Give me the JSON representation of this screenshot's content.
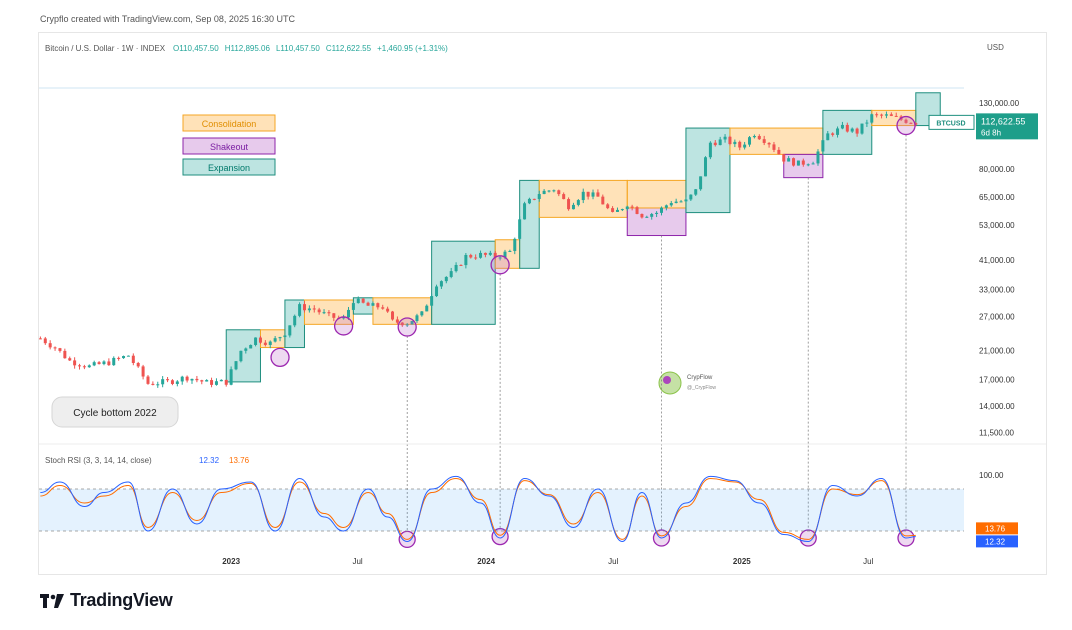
{
  "caption": "Crypflo created with TradingView.com, Sep 08, 2025 16:30 UTC",
  "header": {
    "symbol": "Bitcoin / U.S. Dollar · 1W · INDEX",
    "open": "O110,457.50",
    "high": "H112,895.06",
    "low": "L110,457.50",
    "close": "C112,622.55",
    "change": "+1,460.95 (+1.31%)"
  },
  "currency": "USD",
  "price_tag": {
    "ticker": "BTCUSD",
    "price": "112,622.55",
    "countdown": "6d 8h"
  },
  "legend": {
    "consolidation": "Consolidation",
    "shakeout": "Shakeout",
    "expansion": "Expansion"
  },
  "callout": "Cycle bottom 2022",
  "watermark": {
    "name": "CrypFlow",
    "handle": "@_CrypFlow"
  },
  "rsi": {
    "label": "Stoch RSI (3, 3, 14, 14, close)",
    "k_value": "12.32",
    "d_value": "13.76",
    "level_100": "100.00",
    "k_tag": "12.32",
    "d_tag": "13.76"
  },
  "brand": "TradingView",
  "colors": {
    "up": "#26a69a",
    "down": "#ef5350",
    "consolidation": "#f5a623",
    "shakeout": "#9c27b0",
    "expansion": "#26a69a",
    "k_line": "#2962ff",
    "d_line": "#ff6d00"
  },
  "chart_data": {
    "type": "candlestick",
    "y_scale": "log",
    "y_ticks": [
      "130,000.00",
      "80,000.00",
      "65,000.00",
      "53,000.00",
      "41,000.00",
      "33,000.00",
      "27,000.00",
      "21,000.00",
      "17,000.00",
      "14,000.00",
      "11,500.00"
    ],
    "y_tick_values": [
      130000,
      80000,
      65000,
      53000,
      41000,
      33000,
      27000,
      21000,
      17000,
      14000,
      11500
    ],
    "ylim": [
      10500,
      145000
    ],
    "x_ticks": [
      "2023",
      "Jul",
      "2024",
      "Jul",
      "2025",
      "Jul"
    ],
    "x_tick_dates": [
      "2023-01-01",
      "2023-07-01",
      "2024-01-01",
      "2024-07-01",
      "2025-01-01",
      "2025-07-01"
    ],
    "xlim": [
      "2022-04-01",
      "2025-11-15"
    ],
    "price_path": [
      [
        "2022-04-03",
        23000
      ],
      [
        "2022-04-24",
        21500
      ],
      [
        "2022-05-15",
        19500
      ],
      [
        "2022-06-12",
        18700
      ],
      [
        "2022-07-10",
        19300
      ],
      [
        "2022-08-07",
        20300
      ],
      [
        "2022-09-04",
        16500
      ],
      [
        "2022-10-02",
        16700
      ],
      [
        "2022-10-30",
        17300
      ],
      [
        "2022-11-27",
        16600
      ],
      [
        "2022-12-25",
        16700
      ],
      [
        "2023-01-15",
        21000
      ],
      [
        "2023-02-05",
        23000
      ],
      [
        "2023-02-26",
        22200
      ],
      [
        "2023-03-19",
        24000
      ],
      [
        "2023-04-09",
        29000
      ],
      [
        "2023-04-30",
        28500
      ],
      [
        "2023-05-21",
        27000
      ],
      [
        "2023-06-11",
        26500
      ],
      [
        "2023-06-25",
        30500
      ],
      [
        "2023-07-16",
        29200
      ],
      [
        "2023-08-06",
        29000
      ],
      [
        "2023-08-20",
        26000
      ],
      [
        "2023-09-10",
        25800
      ],
      [
        "2023-10-01",
        27500
      ],
      [
        "2023-10-22",
        34500
      ],
      [
        "2023-11-12",
        37000
      ],
      [
        "2023-12-03",
        42000
      ],
      [
        "2023-12-24",
        42500
      ],
      [
        "2024-01-14",
        42000
      ],
      [
        "2024-02-04",
        43500
      ],
      [
        "2024-02-25",
        61000
      ],
      [
        "2024-03-17",
        67000
      ],
      [
        "2024-04-07",
        69000
      ],
      [
        "2024-04-28",
        61000
      ],
      [
        "2024-05-19",
        67000
      ],
      [
        "2024-06-09",
        65000
      ],
      [
        "2024-06-30",
        57000
      ],
      [
        "2024-07-21",
        62000
      ],
      [
        "2024-08-11",
        57000
      ],
      [
        "2024-09-01",
        58000
      ],
      [
        "2024-09-22",
        63000
      ],
      [
        "2024-10-13",
        63000
      ],
      [
        "2024-10-27",
        68000
      ],
      [
        "2024-11-17",
        97000
      ],
      [
        "2024-12-08",
        99000
      ],
      [
        "2024-12-29",
        94000
      ],
      [
        "2025-01-19",
        104000
      ],
      [
        "2025-02-09",
        97000
      ],
      [
        "2025-03-02",
        86000
      ],
      [
        "2025-03-23",
        83000
      ],
      [
        "2025-04-13",
        85000
      ],
      [
        "2025-05-04",
        103000
      ],
      [
        "2025-05-25",
        108000
      ],
      [
        "2025-06-15",
        105000
      ],
      [
        "2025-07-06",
        118000
      ],
      [
        "2025-07-27",
        118000
      ],
      [
        "2025-08-17",
        115000
      ],
      [
        "2025-09-07",
        112622
      ]
    ],
    "zones": [
      {
        "type": "expansion",
        "start": "2022-12-25",
        "end": "2023-02-12",
        "low": 16700,
        "high": 24500
      },
      {
        "type": "consolidation",
        "start": "2023-02-12",
        "end": "2023-03-19",
        "low": 21500,
        "high": 24500
      },
      {
        "type": "expansion",
        "start": "2023-03-19",
        "end": "2023-04-16",
        "low": 21500,
        "high": 30500
      },
      {
        "type": "consolidation",
        "start": "2023-04-16",
        "end": "2023-06-25",
        "low": 25500,
        "high": 30500
      },
      {
        "type": "expansion",
        "start": "2023-06-25",
        "end": "2023-07-23",
        "low": 27500,
        "high": 31000
      },
      {
        "type": "consolidation",
        "start": "2023-07-23",
        "end": "2023-10-15",
        "low": 25500,
        "high": 31000
      },
      {
        "type": "expansion",
        "start": "2023-10-15",
        "end": "2024-01-14",
        "low": 25500,
        "high": 47000
      },
      {
        "type": "consolidation",
        "start": "2024-01-14",
        "end": "2024-02-18",
        "low": 38500,
        "high": 47500
      },
      {
        "type": "expansion",
        "start": "2024-02-18",
        "end": "2024-03-17",
        "low": 38500,
        "high": 73500
      },
      {
        "type": "consolidation",
        "start": "2024-03-17",
        "end": "2024-07-21",
        "low": 56000,
        "high": 73500
      },
      {
        "type": "shakeout",
        "start": "2024-07-21",
        "end": "2024-10-13",
        "low": 49000,
        "high": 60000
      },
      {
        "type": "consolidation",
        "start": "2024-07-21",
        "end": "2024-10-13",
        "low": 60000,
        "high": 73500
      },
      {
        "type": "expansion",
        "start": "2024-10-13",
        "end": "2024-12-15",
        "low": 58000,
        "high": 108000
      },
      {
        "type": "consolidation",
        "start": "2024-12-15",
        "end": "2025-04-27",
        "low": 89000,
        "high": 108000
      },
      {
        "type": "shakeout",
        "start": "2025-03-02",
        "end": "2025-04-27",
        "low": 75000,
        "high": 89000
      },
      {
        "type": "expansion",
        "start": "2025-04-27",
        "end": "2025-07-06",
        "low": 89000,
        "high": 123000
      },
      {
        "type": "consolidation",
        "start": "2025-07-06",
        "end": "2025-09-07",
        "low": 110000,
        "high": 123000
      },
      {
        "type": "expansion",
        "start": "2025-09-07",
        "end": "2025-10-12",
        "low": 110000,
        "high": 140000
      }
    ],
    "shakeout_circles": [
      {
        "date": "2023-03-12",
        "price": 20000,
        "rsi": null
      },
      {
        "date": "2023-06-11",
        "price": 25200,
        "rsi": null
      },
      {
        "date": "2023-09-10",
        "price": 25000,
        "rsi": 8
      },
      {
        "date": "2024-01-21",
        "price": 39500,
        "rsi": 12
      },
      {
        "date": "2024-09-08",
        "price": null,
        "rsi": 10
      },
      {
        "date": "2025-04-06",
        "price": null,
        "rsi": 10
      },
      {
        "date": "2025-08-24",
        "price": 110000,
        "rsi": 10
      }
    ],
    "stoch_rsi": {
      "ylim": [
        0,
        100
      ],
      "band": [
        20,
        80
      ],
      "k": [
        [
          "2022-04-03",
          75
        ],
        [
          "2022-05-01",
          90
        ],
        [
          "2022-06-05",
          55
        ],
        [
          "2022-07-03",
          75
        ],
        [
          "2022-08-07",
          90
        ],
        [
          "2022-09-04",
          20
        ],
        [
          "2022-10-09",
          80
        ],
        [
          "2022-11-13",
          30
        ],
        [
          "2022-12-18",
          80
        ],
        [
          "2023-01-29",
          90
        ],
        [
          "2023-03-05",
          20
        ],
        [
          "2023-04-09",
          95
        ],
        [
          "2023-05-14",
          40
        ],
        [
          "2023-06-11",
          20
        ],
        [
          "2023-07-16",
          80
        ],
        [
          "2023-08-13",
          40
        ],
        [
          "2023-09-10",
          5
        ],
        [
          "2023-10-15",
          80
        ],
        [
          "2023-11-19",
          98
        ],
        [
          "2023-12-24",
          60
        ],
        [
          "2024-01-21",
          10
        ],
        [
          "2024-02-25",
          95
        ],
        [
          "2024-03-31",
          70
        ],
        [
          "2024-05-05",
          25
        ],
        [
          "2024-06-09",
          80
        ],
        [
          "2024-07-14",
          5
        ],
        [
          "2024-08-11",
          75
        ],
        [
          "2024-09-08",
          10
        ],
        [
          "2024-10-13",
          60
        ],
        [
          "2024-11-17",
          98
        ],
        [
          "2024-12-22",
          92
        ],
        [
          "2025-01-26",
          60
        ],
        [
          "2025-03-02",
          15
        ],
        [
          "2025-04-06",
          5
        ],
        [
          "2025-05-11",
          85
        ],
        [
          "2025-06-15",
          70
        ],
        [
          "2025-07-20",
          95
        ],
        [
          "2025-08-24",
          10
        ],
        [
          "2025-09-07",
          12
        ]
      ],
      "d": [
        [
          "2022-04-03",
          70
        ],
        [
          "2022-05-01",
          85
        ],
        [
          "2022-06-05",
          60
        ],
        [
          "2022-07-03",
          70
        ],
        [
          "2022-08-07",
          85
        ],
        [
          "2022-09-04",
          25
        ],
        [
          "2022-10-09",
          75
        ],
        [
          "2022-11-13",
          35
        ],
        [
          "2022-12-18",
          75
        ],
        [
          "2023-01-29",
          88
        ],
        [
          "2023-03-05",
          25
        ],
        [
          "2023-04-09",
          90
        ],
        [
          "2023-05-14",
          45
        ],
        [
          "2023-06-11",
          25
        ],
        [
          "2023-07-16",
          75
        ],
        [
          "2023-08-13",
          45
        ],
        [
          "2023-09-10",
          8
        ],
        [
          "2023-10-15",
          75
        ],
        [
          "2023-11-19",
          95
        ],
        [
          "2023-12-24",
          65
        ],
        [
          "2024-01-21",
          14
        ],
        [
          "2024-02-25",
          92
        ],
        [
          "2024-03-31",
          72
        ],
        [
          "2024-05-05",
          30
        ],
        [
          "2024-06-09",
          75
        ],
        [
          "2024-07-14",
          8
        ],
        [
          "2024-08-11",
          70
        ],
        [
          "2024-09-08",
          13
        ],
        [
          "2024-10-13",
          55
        ],
        [
          "2024-11-17",
          95
        ],
        [
          "2024-12-22",
          90
        ],
        [
          "2025-01-26",
          65
        ],
        [
          "2025-03-02",
          18
        ],
        [
          "2025-04-06",
          8
        ],
        [
          "2025-05-11",
          80
        ],
        [
          "2025-06-15",
          72
        ],
        [
          "2025-07-20",
          92
        ],
        [
          "2025-08-24",
          13
        ],
        [
          "2025-09-07",
          13.76
        ]
      ]
    }
  }
}
